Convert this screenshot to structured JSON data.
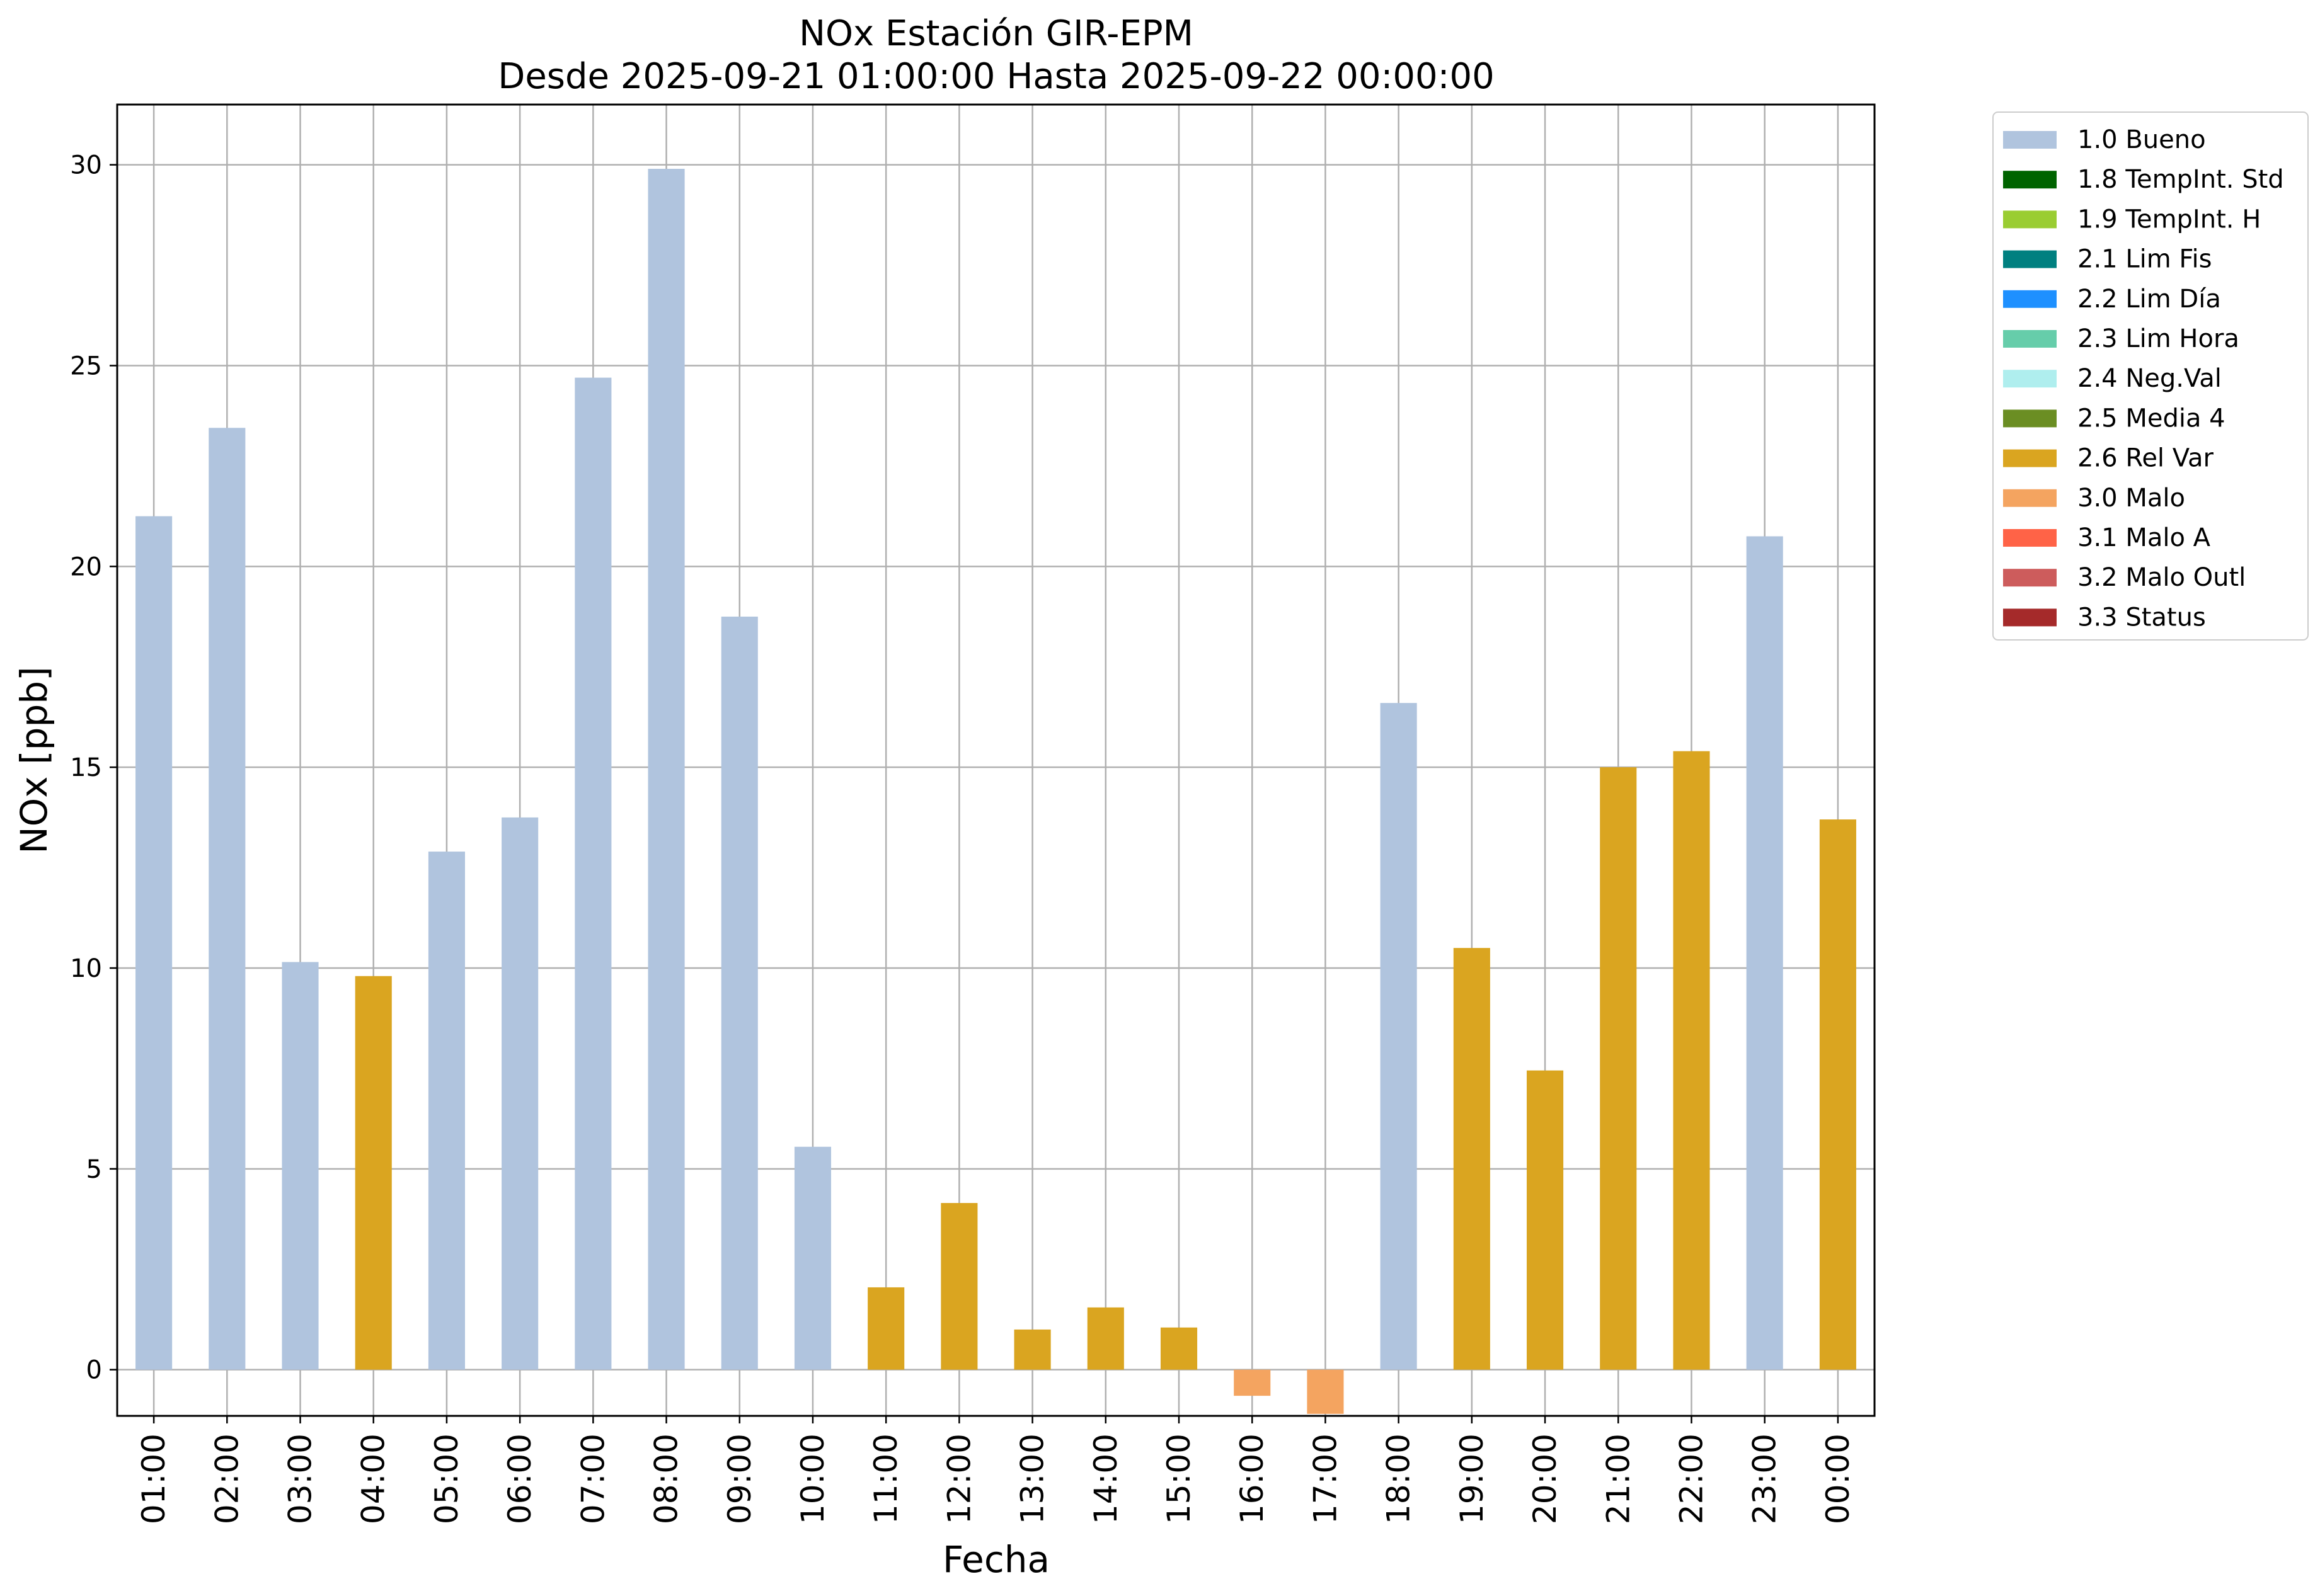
{
  "chart_data": {
    "type": "bar",
    "title": "NOx Estación GIR-EPM",
    "subtitle": "Desde 2025-09-21 01:00:00 Hasta 2025-09-22 00:00:00",
    "xlabel": "Fecha",
    "ylabel": "NOx [ppb]",
    "ylim": [
      -1.15,
      31.5
    ],
    "yticks": [
      0,
      5,
      10,
      15,
      20,
      25,
      30
    ],
    "grid": true,
    "legend_position": "outside-top-right",
    "categories": [
      "01:00",
      "02:00",
      "03:00",
      "04:00",
      "05:00",
      "06:00",
      "07:00",
      "08:00",
      "09:00",
      "10:00",
      "11:00",
      "12:00",
      "13:00",
      "14:00",
      "15:00",
      "16:00",
      "17:00",
      "18:00",
      "19:00",
      "20:00",
      "21:00",
      "22:00",
      "23:00",
      "00:00"
    ],
    "values": [
      21.25,
      23.45,
      10.15,
      9.8,
      12.9,
      13.75,
      24.7,
      29.9,
      18.75,
      5.55,
      2.05,
      4.15,
      1.0,
      1.55,
      1.05,
      -0.65,
      -1.1,
      16.6,
      10.5,
      7.45,
      15.0,
      15.4,
      20.75,
      13.7
    ],
    "flags": [
      "1.0",
      "1.0",
      "1.0",
      "2.6",
      "1.0",
      "1.0",
      "1.0",
      "1.0",
      "1.0",
      "1.0",
      "2.6",
      "2.6",
      "2.6",
      "2.6",
      "2.6",
      "3.0",
      "3.0",
      "1.0",
      "2.6",
      "2.6",
      "2.6",
      "2.6",
      "1.0",
      "2.6"
    ],
    "legend": [
      {
        "code": "1.0",
        "label": "1.0 Bueno",
        "color": "#b0c4de"
      },
      {
        "code": "1.8",
        "label": "1.8 TempInt. Std",
        "color": "#006400"
      },
      {
        "code": "1.9",
        "label": "1.9 TempInt. H",
        "color": "#9acd32"
      },
      {
        "code": "2.1",
        "label": "2.1 Lim Fis",
        "color": "#008080"
      },
      {
        "code": "2.2",
        "label": "2.2 Lim Día",
        "color": "#1e90ff"
      },
      {
        "code": "2.3",
        "label": "2.3 Lim Hora",
        "color": "#66cdaa"
      },
      {
        "code": "2.4",
        "label": "2.4 Neg.Val",
        "color": "#afeeee"
      },
      {
        "code": "2.5",
        "label": "2.5 Media 4",
        "color": "#6b8e23"
      },
      {
        "code": "2.6",
        "label": "2.6 Rel Var",
        "color": "#daa520"
      },
      {
        "code": "3.0",
        "label": "3.0 Malo",
        "color": "#f4a460"
      },
      {
        "code": "3.1",
        "label": "3.1 Malo A",
        "color": "#ff6347"
      },
      {
        "code": "3.2",
        "label": "3.2 Malo Outl",
        "color": "#cd5c5c"
      },
      {
        "code": "3.3",
        "label": "3.3 Status",
        "color": "#a52a2a"
      }
    ]
  }
}
